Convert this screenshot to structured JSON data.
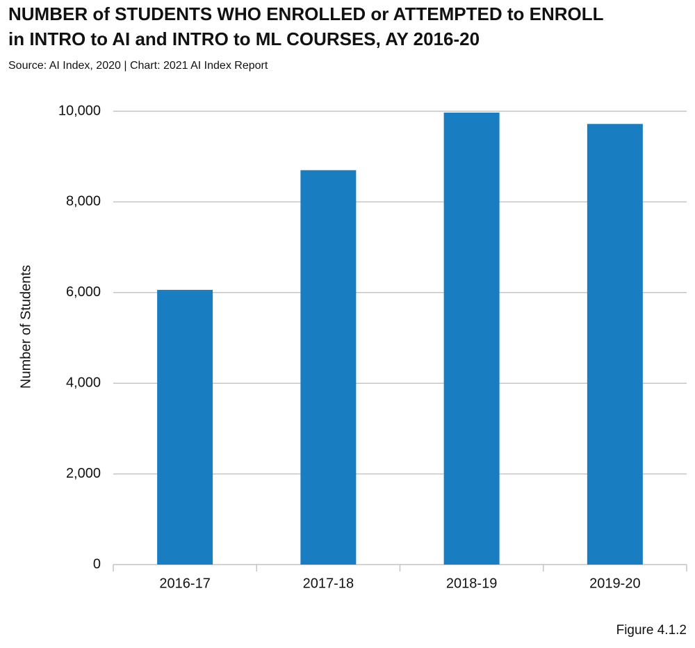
{
  "chart_data": {
    "type": "bar",
    "title": [
      "NUMBER of STUDENTS WHO ENROLLED or ATTEMPTED to ENROLL",
      "in INTRO to AI and INTRO to ML COURSES, AY 2016-20"
    ],
    "source": "Source: AI Index, 2020 | Chart: 2021 AI Index Report",
    "ylabel": "Number of Students",
    "figure_label": "Figure 4.1.2",
    "categories": [
      "2016-17",
      "2017-18",
      "2018-19",
      "2019-20"
    ],
    "values": [
      6060,
      8700,
      9970,
      9720
    ],
    "color": "#187dc1",
    "ylim": [
      0,
      10000
    ],
    "yticks": [
      0,
      {
        "value": 2000,
        "label": "2,000"
      },
      {
        "value": 4000,
        "label": "4,000"
      },
      {
        "value": 6000,
        "label": "6,000"
      },
      {
        "value": 8000,
        "label": "8,000"
      },
      {
        "value": 10000,
        "label": "10,000"
      }
    ],
    "grid": true
  }
}
